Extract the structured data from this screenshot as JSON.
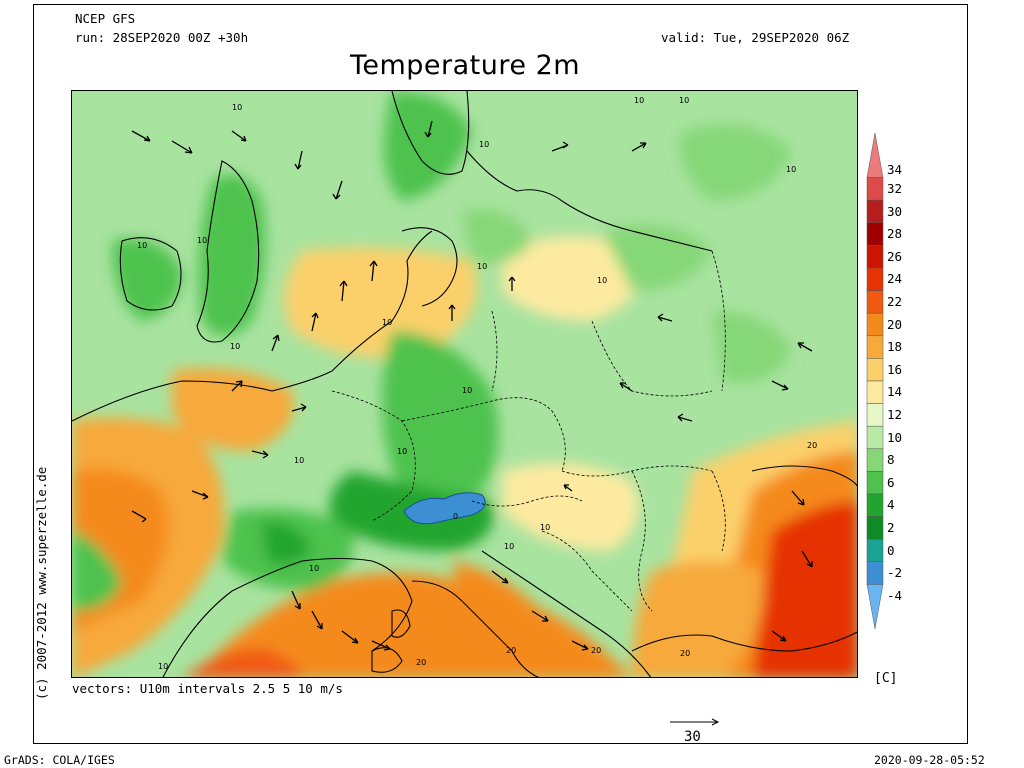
{
  "header": {
    "model": "NCEP GFS",
    "run": "run: 28SEP2020 00Z +30h",
    "valid": "valid: Tue, 29SEP2020 06Z",
    "title": "Temperature 2m"
  },
  "credit": "(c) 2007-2012 www.superzelle.de",
  "vectors_note": "vectors: U10m intervals 2.5 5 10 m/s",
  "colorbar": {
    "unit": "[C]",
    "levels": [
      {
        "label": "34",
        "color": "#ee7b7b"
      },
      {
        "label": "32",
        "color": "#dc4a4a"
      },
      {
        "label": "30",
        "color": "#b61e1e"
      },
      {
        "label": "28",
        "color": "#a00000"
      },
      {
        "label": "26",
        "color": "#cc1400"
      },
      {
        "label": "24",
        "color": "#e63205"
      },
      {
        "label": "22",
        "color": "#f05a12"
      },
      {
        "label": "20",
        "color": "#f58a1c"
      },
      {
        "label": "18",
        "color": "#f7a93a"
      },
      {
        "label": "16",
        "color": "#fbd06a"
      },
      {
        "label": "14",
        "color": "#fdeaa0"
      },
      {
        "label": "12",
        "color": "#e7f7c8"
      },
      {
        "label": "10",
        "color": "#b9e9a4"
      },
      {
        "label": "8",
        "color": "#86d778"
      },
      {
        "label": "6",
        "color": "#4ec24d"
      },
      {
        "label": "4",
        "color": "#22a52e"
      },
      {
        "label": "2",
        "color": "#0f8a24"
      },
      {
        "label": "0",
        "color": "#1aa394"
      },
      {
        "label": "-2",
        "color": "#3d8fd4"
      },
      {
        "label": "-4",
        "color": "#6bb4f2"
      }
    ]
  },
  "contour_labels": [
    "10",
    "10",
    "10",
    "10",
    "10",
    "10",
    "10",
    "10",
    "10",
    "10",
    "10",
    "10",
    "10",
    "10",
    "10",
    "10",
    "10",
    "10",
    "0",
    "20",
    "20",
    "20",
    "20",
    "20"
  ],
  "reference_vector": "30",
  "footer": {
    "left": "GrADS: COLA/IGES",
    "right": "2020-09-28-05:52"
  }
}
